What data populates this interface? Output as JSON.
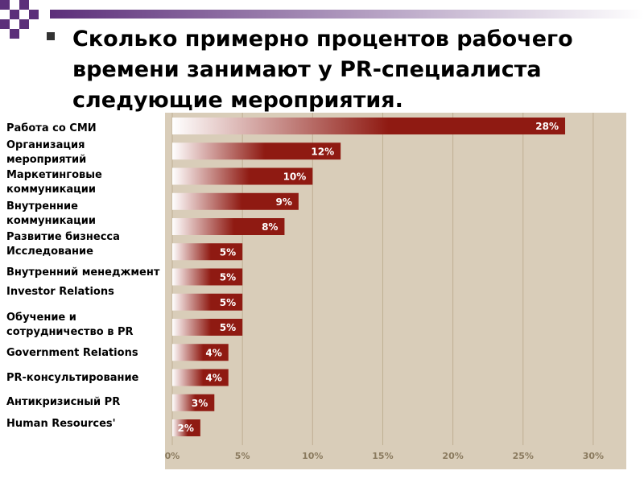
{
  "title": "Сколько примерно процентов рабочего времени занимают у PR-специалиста следующие мероприятия.",
  "colors": {
    "accent": "#5c2f7a",
    "bar_dark": "#8f1a12",
    "bar_light": "#ffffff",
    "plot_bg": "#d9cdb9",
    "grid": "#bfae92"
  },
  "chart_data": {
    "type": "bar",
    "orientation": "horizontal",
    "categories": [
      "Работа со СМИ",
      "Организация мероприятий",
      "Маркетинговые коммуникации",
      "Внутренние коммуникации",
      "Развитие бизнесса",
      "Исследование",
      "Внутренний менеджмент",
      "Investor Relations",
      "Обучение и сотрудничество в PR",
      "Government Relations",
      "PR-консультирование",
      "Антикризисный PR",
      "Human Resources'"
    ],
    "values": [
      28,
      12,
      10,
      9,
      8,
      5,
      5,
      5,
      5,
      4,
      4,
      3,
      2
    ],
    "value_labels": [
      "28%",
      "12%",
      "10%",
      "9%",
      "8%",
      "5%",
      "5%",
      "5%",
      "5%",
      "4%",
      "4%",
      "3%",
      "2%"
    ],
    "x_ticks": [
      "0%",
      "5%",
      "10%",
      "15%",
      "20%",
      "25%",
      "30%"
    ],
    "xlim": [
      0,
      30
    ],
    "grid": true
  }
}
